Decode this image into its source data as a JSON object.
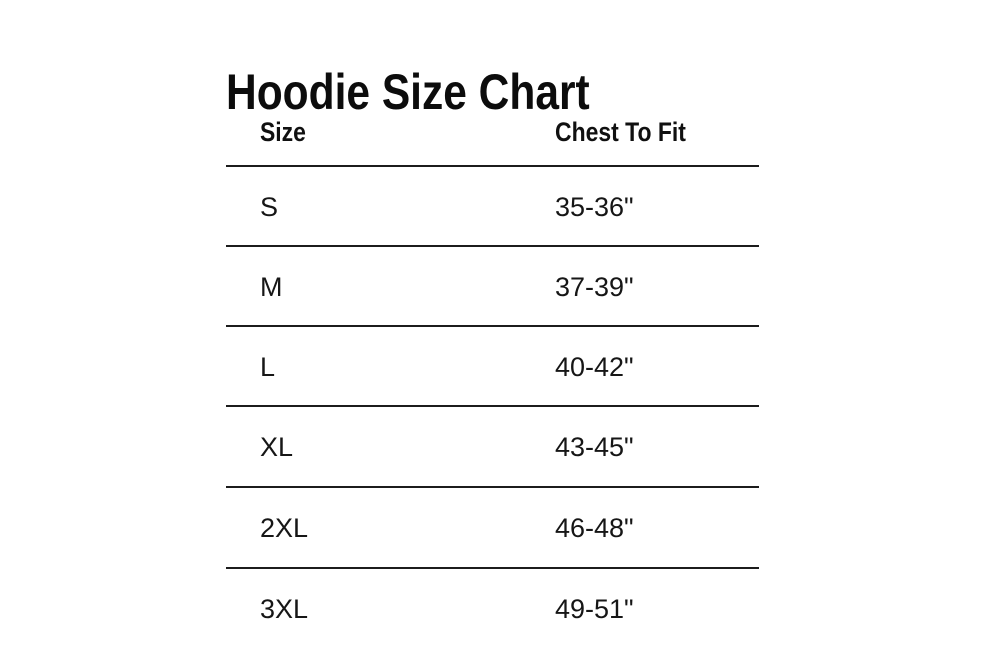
{
  "chart_data": {
    "type": "table",
    "title": "Hoodie Size Chart",
    "columns": [
      "Size",
      "Chest To Fit"
    ],
    "rows": [
      [
        "S",
        "35-36\""
      ],
      [
        "M",
        "37-39\""
      ],
      [
        "L",
        "40-42\""
      ],
      [
        "XL",
        "43-45\""
      ],
      [
        "2XL",
        "46-48\""
      ],
      [
        "3XL",
        "49-51\""
      ]
    ],
    "layout_hints": {
      "row_separators": true,
      "bottom_rule": false,
      "alignment": "left"
    }
  },
  "colors": {
    "background": "#ffffff",
    "text": "#141414",
    "rule": "#1c1c1c"
  }
}
